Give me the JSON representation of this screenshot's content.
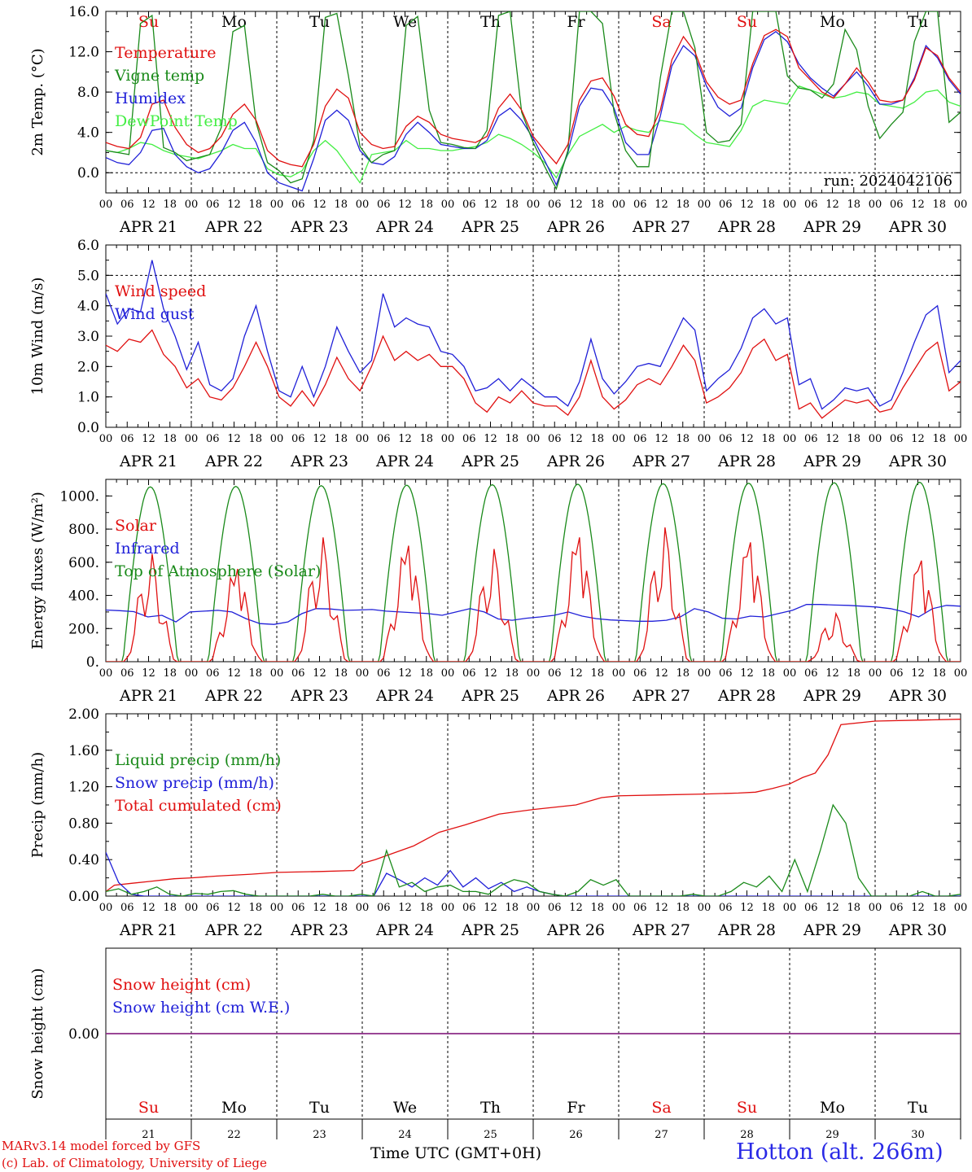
{
  "chart_data": [
    {
      "type": "line",
      "ylabel": "2m Temp. (°C)",
      "ylim": [
        -2,
        16
      ],
      "yticks": [
        "16.0",
        "12.0",
        "8.0",
        "4.0",
        "0.0"
      ],
      "ytick_values": [
        16,
        12,
        8,
        4,
        0
      ],
      "dashed_y": [
        0
      ],
      "x_range_days": [
        0,
        10
      ],
      "annotation": "run: 2024042106",
      "day_names": [
        "Su",
        "Mo",
        "Tu",
        "We",
        "Th",
        "Fr",
        "Sa",
        "Su",
        "Mo",
        "Tu"
      ],
      "day_name_colors": [
        "#e01010",
        "#000000",
        "#000000",
        "#000000",
        "#000000",
        "#000000",
        "#e01010",
        "#e01010",
        "#000000",
        "#000000"
      ],
      "legend_placement": "upper-left",
      "series": [
        {
          "name": "Temperature",
          "color": "#e01010",
          "values": [
            3.0,
            2.6,
            2.4,
            3.5,
            6.8,
            7.2,
            4.5,
            2.8,
            2.0,
            2.4,
            3.6,
            5.8,
            6.8,
            5.2,
            2.2,
            1.2,
            0.8,
            0.6,
            2.8,
            6.6,
            8.3,
            7.4,
            4.0,
            2.8,
            2.4,
            2.6,
            4.6,
            5.6,
            5.0,
            3.8,
            3.4,
            3.2,
            3.0,
            3.6,
            6.4,
            7.8,
            6.2,
            3.6,
            2.2,
            0.9,
            2.8,
            7.2,
            9.1,
            9.4,
            7.6,
            4.8,
            3.8,
            3.6,
            6.2,
            11.2,
            13.5,
            12.0,
            9.0,
            7.5,
            6.8,
            7.2,
            10.8,
            13.6,
            14.2,
            13.5,
            10.4,
            9.2,
            8.0,
            7.4,
            8.8,
            10.4,
            9.0,
            7.2,
            7.0,
            7.2,
            9.2,
            12.4,
            11.6,
            9.4,
            8.0
          ]
        },
        {
          "name": "Vigne temp",
          "color": "#1a8a1a",
          "values": [
            2.2,
            2.0,
            1.8,
            14.8,
            15.6,
            2.5,
            2.0,
            1.2,
            1.5,
            1.8,
            4.5,
            14.0,
            14.6,
            5.0,
            1.0,
            0.2,
            -1.0,
            -0.6,
            3.2,
            15.4,
            15.8,
            9.6,
            2.6,
            1.0,
            1.8,
            2.2,
            14.6,
            15.5,
            6.2,
            3.0,
            2.8,
            2.5,
            2.4,
            4.2,
            15.6,
            16.0,
            6.0,
            3.0,
            0.6,
            -1.6,
            2.2,
            16.0,
            16.0,
            14.8,
            6.0,
            2.2,
            0.6,
            0.6,
            9.4,
            16.0,
            16.0,
            12.4,
            4.0,
            3.0,
            3.2,
            4.8,
            16.0,
            16.0,
            16.0,
            9.6,
            8.4,
            8.2,
            7.4,
            8.8,
            14.2,
            12.2,
            6.6,
            3.4,
            4.8,
            6.0,
            13.0,
            16.0,
            16.0,
            5.0,
            6.0
          ]
        },
        {
          "name": "Humidex",
          "color": "#2020d8",
          "values": [
            1.5,
            1.0,
            0.8,
            2.0,
            4.2,
            4.4,
            1.8,
            0.6,
            0.0,
            0.4,
            2.0,
            4.2,
            5.0,
            3.0,
            0.0,
            -1.0,
            -1.4,
            -1.8,
            1.4,
            5.2,
            6.2,
            5.2,
            2.2,
            1.0,
            0.8,
            1.6,
            3.8,
            5.0,
            4.0,
            2.8,
            2.6,
            2.4,
            2.4,
            3.2,
            5.6,
            6.4,
            5.2,
            3.4,
            1.2,
            -1.2,
            2.0,
            6.6,
            8.4,
            8.2,
            6.4,
            3.0,
            1.8,
            1.8,
            5.6,
            10.6,
            12.6,
            11.6,
            8.6,
            6.5,
            5.6,
            6.4,
            10.4,
            13.2,
            14.0,
            13.0,
            10.8,
            9.4,
            8.4,
            7.6,
            8.8,
            10.0,
            8.6,
            6.8,
            6.8,
            7.2,
            9.4,
            12.6,
            11.4,
            9.2,
            7.8
          ]
        },
        {
          "name": "DewPoint Temp",
          "color": "#44ee44",
          "values": [
            2.2,
            2.0,
            2.4,
            3.0,
            2.8,
            2.2,
            1.8,
            1.6,
            1.4,
            1.8,
            2.2,
            2.8,
            2.4,
            2.4,
            0.4,
            -0.2,
            -0.4,
            0.2,
            2.2,
            3.2,
            2.2,
            0.6,
            -1.0,
            1.8,
            2.0,
            2.2,
            3.2,
            2.4,
            2.4,
            2.2,
            2.2,
            2.4,
            2.6,
            3.0,
            3.8,
            3.4,
            2.8,
            2.0,
            1.0,
            -0.5,
            1.8,
            3.6,
            4.2,
            4.8,
            4.0,
            4.6,
            4.2,
            4.0,
            5.2,
            5.0,
            4.8,
            3.8,
            3.0,
            2.8,
            2.6,
            4.2,
            6.6,
            7.2,
            7.0,
            6.8,
            8.6,
            8.2,
            7.8,
            7.4,
            7.6,
            8.0,
            7.8,
            6.8,
            6.6,
            6.4,
            7.0,
            8.0,
            8.2,
            7.0,
            6.6
          ]
        }
      ]
    },
    {
      "type": "line",
      "ylabel": "10m Wind (m/s)",
      "ylim": [
        0,
        6
      ],
      "yticks": [
        "6.0",
        "5.0",
        "4.0",
        "3.0",
        "2.0",
        "1.0",
        "0.0"
      ],
      "ytick_values": [
        6,
        5,
        4,
        3,
        2,
        1,
        0
      ],
      "dashed_y": [
        5
      ],
      "x_range_days": [
        0,
        10
      ],
      "legend_placement": "upper-left",
      "series": [
        {
          "name": "Wind speed",
          "color": "#e01010",
          "values": [
            2.7,
            2.5,
            2.9,
            2.8,
            3.2,
            2.4,
            2.0,
            1.3,
            1.6,
            1.0,
            0.9,
            1.3,
            2.0,
            2.8,
            2.0,
            1.0,
            0.7,
            1.2,
            0.7,
            1.4,
            2.3,
            1.6,
            1.2,
            2.0,
            3.0,
            2.2,
            2.5,
            2.2,
            2.4,
            2.0,
            2.0,
            1.6,
            0.8,
            0.5,
            1.0,
            0.8,
            1.2,
            0.8,
            0.7,
            0.7,
            0.4,
            1.0,
            2.2,
            1.0,
            0.6,
            0.9,
            1.4,
            1.6,
            1.4,
            2.0,
            2.7,
            2.2,
            0.8,
            1.0,
            1.3,
            1.8,
            2.6,
            2.9,
            2.2,
            2.4,
            0.6,
            0.8,
            0.3,
            0.6,
            0.9,
            0.8,
            0.9,
            0.5,
            0.6,
            1.3,
            1.9,
            2.5,
            2.8,
            1.2,
            1.5
          ]
        },
        {
          "name": "Wind gust",
          "color": "#2020d8",
          "values": [
            4.4,
            3.4,
            3.9,
            3.8,
            5.5,
            3.9,
            3.0,
            1.9,
            2.8,
            1.4,
            1.2,
            1.6,
            3.0,
            4.0,
            2.5,
            1.2,
            1.0,
            2.0,
            1.0,
            2.0,
            3.3,
            2.5,
            1.8,
            2.2,
            4.4,
            3.3,
            3.6,
            3.4,
            3.3,
            2.5,
            2.4,
            2.0,
            1.2,
            1.3,
            1.6,
            1.2,
            1.6,
            1.3,
            1.0,
            1.0,
            0.7,
            1.5,
            2.9,
            1.6,
            1.1,
            1.5,
            2.0,
            2.1,
            2.0,
            2.8,
            3.6,
            3.2,
            1.2,
            1.6,
            1.9,
            2.6,
            3.6,
            3.9,
            3.4,
            3.6,
            1.4,
            1.6,
            0.6,
            0.9,
            1.3,
            1.2,
            1.3,
            0.7,
            0.9,
            1.8,
            2.8,
            3.7,
            4.0,
            1.8,
            2.2
          ]
        }
      ]
    },
    {
      "type": "line",
      "ylabel": "Energy fluxes (W/m²)",
      "ylim": [
        0,
        1100
      ],
      "yticks": [
        "1000.",
        "800.",
        "600.",
        "400.",
        "200.",
        "0."
      ],
      "ytick_values": [
        1000,
        800,
        600,
        400,
        200,
        0
      ],
      "dashed_y": [],
      "x_range_days": [
        0,
        10
      ],
      "legend_placement": "upper-left",
      "series": [
        {
          "name": "Solar",
          "color": "#e01010",
          "peaks": [
            650,
            560,
            750,
            700,
            680,
            750,
            810,
            720,
            290,
            610
          ],
          "values": []
        },
        {
          "name": "Infrared",
          "color": "#2020d8",
          "values": [
            312,
            308,
            302,
            270,
            280,
            240,
            300,
            305,
            310,
            300,
            260,
            230,
            225,
            240,
            290,
            320,
            318,
            310,
            312,
            315,
            305,
            300,
            295,
            290,
            280,
            300,
            320,
            300,
            258,
            250,
            262,
            270,
            280,
            300,
            275,
            260,
            252,
            248,
            244,
            244,
            250,
            270,
            320,
            300,
            262,
            258,
            275,
            270,
            290,
            310,
            345,
            345,
            342,
            340,
            335,
            330,
            320,
            300,
            270,
            320,
            340,
            335
          ]
        },
        {
          "name": "Top of Atmosphere (Solar)",
          "color": "#1a8a1a",
          "peaks": [
            1055,
            1058,
            1062,
            1065,
            1068,
            1071,
            1074,
            1077,
            1080,
            1083
          ],
          "values": []
        }
      ]
    },
    {
      "type": "line",
      "ylabel": "Precip (mm/h)",
      "ylim": [
        0,
        2
      ],
      "yticks": [
        "2.00",
        "1.60",
        "1.20",
        "0.80",
        "0.40",
        "0.00"
      ],
      "ytick_values": [
        2.0,
        1.6,
        1.2,
        0.8,
        0.4,
        0.0
      ],
      "dashed_y": [],
      "x_range_days": [
        0,
        10
      ],
      "legend_placement": "upper-left",
      "series": [
        {
          "name": "Liquid precip (mm/h)",
          "color": "#1a8a1a",
          "values": [
            0.05,
            0.08,
            0.02,
            0.05,
            0.1,
            0.02,
            0.0,
            0.03,
            0.02,
            0.05,
            0.06,
            0.02,
            0.0,
            0.0,
            0.0,
            0.0,
            0.0,
            0.02,
            0.0,
            0.0,
            0.02,
            0.0,
            0.5,
            0.1,
            0.15,
            0.05,
            0.1,
            0.12,
            0.05,
            0.05,
            0.02,
            0.12,
            0.18,
            0.15,
            0.05,
            0.02,
            0.0,
            0.05,
            0.18,
            0.12,
            0.18,
            0.0,
            0.0,
            0.0,
            0.0,
            0.0,
            0.02,
            0.0,
            0.0,
            0.05,
            0.15,
            0.1,
            0.22,
            0.05,
            0.4,
            0.05,
            0.5,
            1.0,
            0.8,
            0.2,
            0.0,
            0.0,
            0.0,
            0.0,
            0.05,
            0.0,
            0.0,
            0.02
          ]
        },
        {
          "name": "Snow precip (mm/h)",
          "color": "#2020d8",
          "values": [
            0.48,
            0.15,
            0.02,
            0.0,
            0.0,
            0.0,
            0.0,
            0.0,
            0.0,
            0.0,
            0.0,
            0.0,
            0.0,
            0.0,
            0.0,
            0.0,
            0.0,
            0.0,
            0.0,
            0.0,
            0.0,
            0.0,
            0.25,
            0.18,
            0.1,
            0.2,
            0.12,
            0.28,
            0.1,
            0.2,
            0.08,
            0.15,
            0.05,
            0.1,
            0.05,
            0.02,
            0.0,
            0.0,
            0.0,
            0.0,
            0.0,
            0.0,
            0.0,
            0.0,
            0.0,
            0.0,
            0.0,
            0.0,
            0.0,
            0.0,
            0.0,
            0.0,
            0.0,
            0.0,
            0.0,
            0.0,
            0.0,
            0.0,
            0.0,
            0.0,
            0.0,
            0.0,
            0.0,
            0.0,
            0.0,
            0.0,
            0.0,
            0.0
          ]
        },
        {
          "name": "Total cumulated (cm)",
          "color": "#e01010",
          "x": [
            0,
            0.1,
            0.3,
            0.5,
            0.8,
            1.0,
            1.3,
            1.7,
            2.0,
            2.5,
            2.9,
            3.0,
            3.15,
            3.3,
            3.6,
            3.9,
            4.2,
            4.6,
            5.0,
            5.5,
            5.8,
            6.0,
            6.5,
            7.0,
            7.4,
            7.6,
            7.8,
            8.0,
            8.15,
            8.3,
            8.45,
            8.6,
            9.0,
            9.5,
            10.0
          ],
          "values": [
            0.05,
            0.12,
            0.14,
            0.16,
            0.19,
            0.2,
            0.22,
            0.24,
            0.26,
            0.27,
            0.28,
            0.36,
            0.4,
            0.45,
            0.55,
            0.7,
            0.78,
            0.9,
            0.95,
            1.0,
            1.08,
            1.1,
            1.11,
            1.12,
            1.13,
            1.14,
            1.18,
            1.23,
            1.3,
            1.35,
            1.55,
            1.88,
            1.92,
            1.93,
            1.94
          ]
        }
      ]
    },
    {
      "type": "line",
      "ylabel": "Snow height (cm)",
      "ylim": [
        -1,
        1
      ],
      "yticks": [
        "0.00"
      ],
      "ytick_values": [
        0
      ],
      "dashed_y": [],
      "x_range_days": [
        0,
        10
      ],
      "legend_placement": "upper-left",
      "day_names": [
        "Su",
        "Mo",
        "Tu",
        "We",
        "Th",
        "Fr",
        "Sa",
        "Su",
        "Mo",
        "Tu"
      ],
      "day_name_colors": [
        "#e01010",
        "#000000",
        "#000000",
        "#000000",
        "#000000",
        "#000000",
        "#e01010",
        "#e01010",
        "#000000",
        "#000000"
      ],
      "day_numbers": [
        "21",
        "22",
        "23",
        "24",
        "25",
        "26",
        "27",
        "28",
        "29",
        "30"
      ],
      "series": [
        {
          "name": "Snow height (cm)",
          "color": "#e01010",
          "x": [
            0,
            10
          ],
          "values": [
            0,
            0
          ]
        },
        {
          "name": "Snow height (cm W.E.)",
          "color": "#2020d8",
          "x": [
            0,
            10
          ],
          "values": [
            0,
            0
          ]
        }
      ]
    }
  ],
  "x_axis": {
    "hour_ticks": [
      "00",
      "06",
      "12",
      "18"
    ],
    "final_tick": "00",
    "dates": [
      "APR 21",
      "APR 22",
      "APR 23",
      "APR 24",
      "APR 25",
      "APR 26",
      "APR 27",
      "APR 28",
      "APR 29",
      "APR 30"
    ]
  },
  "footer": {
    "credit_line1": "MARv3.14 model forced by GFS",
    "credit_line2": "(c) Lab. of Climatology, University of Liege",
    "xaxis_label": "Time UTC (GMT+0H)",
    "station": "Hotton (alt. 266m)"
  }
}
